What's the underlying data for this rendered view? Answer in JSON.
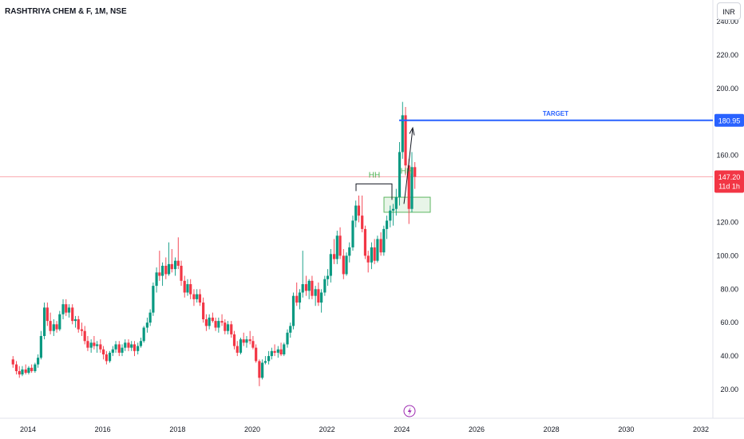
{
  "header": {
    "title": "RASHTRIYA CHEM & F, 1M, NSE",
    "currency": "INR"
  },
  "colors": {
    "up": "#089981",
    "down": "#f23645",
    "target_line": "#2962ff",
    "last_price_line": "#f23645",
    "zone_fill": "#e6f4e6",
    "zone_stroke": "#4caf50",
    "hh_text": "#4caf50",
    "bracket": "#131722"
  },
  "chart_data": {
    "type": "candlestick",
    "ylim": [
      10,
      240
    ],
    "y_ticks": [
      20,
      40,
      60,
      80,
      100,
      120,
      140,
      160,
      180,
      200,
      220,
      240
    ],
    "y_tick_labels": [
      "20.00",
      "40.00",
      "60.00",
      "80.00",
      "100.00",
      "120.00",
      "140.00",
      "160.00",
      "180.00",
      "200.00",
      "220.00",
      "240.00"
    ],
    "xlim": [
      2013.6,
      2032.9
    ],
    "x_ticks": [
      2014,
      2016,
      2018,
      2020,
      2022,
      2024,
      2026,
      2028,
      2030,
      2032
    ],
    "x_tick_labels": [
      "2014",
      "2016",
      "2018",
      "2020",
      "2022",
      "2024",
      "2026",
      "2028",
      "2030",
      "2032"
    ],
    "candles": [
      {
        "t": 2013.6,
        "o": 38,
        "h": 40,
        "l": 33,
        "c": 35
      },
      {
        "t": 2013.69,
        "o": 35,
        "h": 37,
        "l": 29,
        "c": 31
      },
      {
        "t": 2013.77,
        "o": 31,
        "h": 34,
        "l": 27,
        "c": 29
      },
      {
        "t": 2013.85,
        "o": 29,
        "h": 34,
        "l": 28,
        "c": 32
      },
      {
        "t": 2013.94,
        "o": 32,
        "h": 35,
        "l": 29,
        "c": 30
      },
      {
        "t": 2014.02,
        "o": 30,
        "h": 34,
        "l": 29,
        "c": 33
      },
      {
        "t": 2014.1,
        "o": 33,
        "h": 35,
        "l": 30,
        "c": 31
      },
      {
        "t": 2014.19,
        "o": 31,
        "h": 36,
        "l": 30,
        "c": 35
      },
      {
        "t": 2014.27,
        "o": 35,
        "h": 41,
        "l": 33,
        "c": 39
      },
      {
        "t": 2014.35,
        "o": 39,
        "h": 55,
        "l": 38,
        "c": 52
      },
      {
        "t": 2014.44,
        "o": 52,
        "h": 72,
        "l": 50,
        "c": 69
      },
      {
        "t": 2014.52,
        "o": 69,
        "h": 72,
        "l": 58,
        "c": 61
      },
      {
        "t": 2014.6,
        "o": 61,
        "h": 66,
        "l": 53,
        "c": 55
      },
      {
        "t": 2014.69,
        "o": 55,
        "h": 62,
        "l": 52,
        "c": 59
      },
      {
        "t": 2014.77,
        "o": 59,
        "h": 61,
        "l": 54,
        "c": 56
      },
      {
        "t": 2014.85,
        "o": 56,
        "h": 67,
        "l": 55,
        "c": 65
      },
      {
        "t": 2014.94,
        "o": 65,
        "h": 74,
        "l": 62,
        "c": 71
      },
      {
        "t": 2015.02,
        "o": 71,
        "h": 74,
        "l": 64,
        "c": 66
      },
      {
        "t": 2015.1,
        "o": 66,
        "h": 71,
        "l": 63,
        "c": 69
      },
      {
        "t": 2015.19,
        "o": 69,
        "h": 71,
        "l": 59,
        "c": 61
      },
      {
        "t": 2015.27,
        "o": 61,
        "h": 64,
        "l": 57,
        "c": 62
      },
      {
        "t": 2015.35,
        "o": 62,
        "h": 64,
        "l": 54,
        "c": 56
      },
      {
        "t": 2015.44,
        "o": 56,
        "h": 60,
        "l": 52,
        "c": 55
      },
      {
        "t": 2015.52,
        "o": 55,
        "h": 58,
        "l": 47,
        "c": 49
      },
      {
        "t": 2015.6,
        "o": 49,
        "h": 52,
        "l": 43,
        "c": 45
      },
      {
        "t": 2015.69,
        "o": 45,
        "h": 50,
        "l": 42,
        "c": 48
      },
      {
        "t": 2015.77,
        "o": 48,
        "h": 52,
        "l": 44,
        "c": 46
      },
      {
        "t": 2015.85,
        "o": 46,
        "h": 49,
        "l": 42,
        "c": 47
      },
      {
        "t": 2015.94,
        "o": 47,
        "h": 50,
        "l": 42,
        "c": 44
      },
      {
        "t": 2016.02,
        "o": 44,
        "h": 46,
        "l": 38,
        "c": 41
      },
      {
        "t": 2016.1,
        "o": 41,
        "h": 43,
        "l": 35,
        "c": 37
      },
      {
        "t": 2016.19,
        "o": 37,
        "h": 43,
        "l": 36,
        "c": 42
      },
      {
        "t": 2016.27,
        "o": 42,
        "h": 46,
        "l": 40,
        "c": 44
      },
      {
        "t": 2016.35,
        "o": 44,
        "h": 49,
        "l": 42,
        "c": 47
      },
      {
        "t": 2016.44,
        "o": 47,
        "h": 49,
        "l": 40,
        "c": 42
      },
      {
        "t": 2016.52,
        "o": 42,
        "h": 47,
        "l": 40,
        "c": 45
      },
      {
        "t": 2016.6,
        "o": 45,
        "h": 50,
        "l": 43,
        "c": 48
      },
      {
        "t": 2016.69,
        "o": 48,
        "h": 50,
        "l": 43,
        "c": 45
      },
      {
        "t": 2016.77,
        "o": 45,
        "h": 49,
        "l": 43,
        "c": 47
      },
      {
        "t": 2016.85,
        "o": 47,
        "h": 49,
        "l": 40,
        "c": 43
      },
      {
        "t": 2016.94,
        "o": 43,
        "h": 48,
        "l": 41,
        "c": 46
      },
      {
        "t": 2017.02,
        "o": 46,
        "h": 51,
        "l": 45,
        "c": 49
      },
      {
        "t": 2017.1,
        "o": 49,
        "h": 58,
        "l": 48,
        "c": 57
      },
      {
        "t": 2017.19,
        "o": 57,
        "h": 63,
        "l": 54,
        "c": 60
      },
      {
        "t": 2017.27,
        "o": 60,
        "h": 68,
        "l": 58,
        "c": 66
      },
      {
        "t": 2017.35,
        "o": 66,
        "h": 84,
        "l": 64,
        "c": 82
      },
      {
        "t": 2017.44,
        "o": 82,
        "h": 93,
        "l": 78,
        "c": 90
      },
      {
        "t": 2017.52,
        "o": 90,
        "h": 103,
        "l": 85,
        "c": 88
      },
      {
        "t": 2017.6,
        "o": 88,
        "h": 96,
        "l": 82,
        "c": 94
      },
      {
        "t": 2017.69,
        "o": 94,
        "h": 99,
        "l": 86,
        "c": 89
      },
      {
        "t": 2017.77,
        "o": 89,
        "h": 108,
        "l": 88,
        "c": 95
      },
      {
        "t": 2017.85,
        "o": 95,
        "h": 104,
        "l": 90,
        "c": 92
      },
      {
        "t": 2017.94,
        "o": 92,
        "h": 99,
        "l": 88,
        "c": 97
      },
      {
        "t": 2018.02,
        "o": 97,
        "h": 111,
        "l": 92,
        "c": 94
      },
      {
        "t": 2018.1,
        "o": 94,
        "h": 97,
        "l": 82,
        "c": 85
      },
      {
        "t": 2018.19,
        "o": 85,
        "h": 88,
        "l": 75,
        "c": 78
      },
      {
        "t": 2018.27,
        "o": 78,
        "h": 86,
        "l": 76,
        "c": 83
      },
      {
        "t": 2018.35,
        "o": 83,
        "h": 86,
        "l": 74,
        "c": 77
      },
      {
        "t": 2018.44,
        "o": 77,
        "h": 80,
        "l": 70,
        "c": 74
      },
      {
        "t": 2018.52,
        "o": 74,
        "h": 80,
        "l": 72,
        "c": 77
      },
      {
        "t": 2018.6,
        "o": 77,
        "h": 80,
        "l": 70,
        "c": 72
      },
      {
        "t": 2018.69,
        "o": 72,
        "h": 75,
        "l": 60,
        "c": 62
      },
      {
        "t": 2018.77,
        "o": 62,
        "h": 65,
        "l": 55,
        "c": 58
      },
      {
        "t": 2018.85,
        "o": 58,
        "h": 65,
        "l": 56,
        "c": 63
      },
      {
        "t": 2018.94,
        "o": 63,
        "h": 66,
        "l": 60,
        "c": 61
      },
      {
        "t": 2019.02,
        "o": 61,
        "h": 63,
        "l": 55,
        "c": 57
      },
      {
        "t": 2019.1,
        "o": 57,
        "h": 63,
        "l": 54,
        "c": 61
      },
      {
        "t": 2019.19,
        "o": 61,
        "h": 65,
        "l": 58,
        "c": 60
      },
      {
        "t": 2019.27,
        "o": 60,
        "h": 62,
        "l": 53,
        "c": 55
      },
      {
        "t": 2019.35,
        "o": 55,
        "h": 61,
        "l": 53,
        "c": 59
      },
      {
        "t": 2019.44,
        "o": 59,
        "h": 61,
        "l": 51,
        "c": 53
      },
      {
        "t": 2019.52,
        "o": 53,
        "h": 55,
        "l": 44,
        "c": 46
      },
      {
        "t": 2019.6,
        "o": 46,
        "h": 49,
        "l": 40,
        "c": 42
      },
      {
        "t": 2019.69,
        "o": 42,
        "h": 51,
        "l": 41,
        "c": 50
      },
      {
        "t": 2019.77,
        "o": 50,
        "h": 54,
        "l": 46,
        "c": 48
      },
      {
        "t": 2019.85,
        "o": 48,
        "h": 52,
        "l": 45,
        "c": 50
      },
      {
        "t": 2019.94,
        "o": 50,
        "h": 55,
        "l": 47,
        "c": 49
      },
      {
        "t": 2020.02,
        "o": 49,
        "h": 52,
        "l": 44,
        "c": 45
      },
      {
        "t": 2020.1,
        "o": 45,
        "h": 47,
        "l": 36,
        "c": 37
      },
      {
        "t": 2020.19,
        "o": 37,
        "h": 38,
        "l": 22,
        "c": 27
      },
      {
        "t": 2020.27,
        "o": 27,
        "h": 38,
        "l": 26,
        "c": 36
      },
      {
        "t": 2020.35,
        "o": 36,
        "h": 40,
        "l": 35,
        "c": 37
      },
      {
        "t": 2020.44,
        "o": 37,
        "h": 43,
        "l": 35,
        "c": 40
      },
      {
        "t": 2020.52,
        "o": 40,
        "h": 45,
        "l": 38,
        "c": 43
      },
      {
        "t": 2020.6,
        "o": 43,
        "h": 47,
        "l": 40,
        "c": 42
      },
      {
        "t": 2020.69,
        "o": 42,
        "h": 46,
        "l": 39,
        "c": 44
      },
      {
        "t": 2020.77,
        "o": 44,
        "h": 48,
        "l": 40,
        "c": 41
      },
      {
        "t": 2020.85,
        "o": 41,
        "h": 48,
        "l": 40,
        "c": 47
      },
      {
        "t": 2020.94,
        "o": 47,
        "h": 56,
        "l": 45,
        "c": 54
      },
      {
        "t": 2021.02,
        "o": 54,
        "h": 60,
        "l": 51,
        "c": 58
      },
      {
        "t": 2021.1,
        "o": 58,
        "h": 78,
        "l": 56,
        "c": 76
      },
      {
        "t": 2021.19,
        "o": 76,
        "h": 84,
        "l": 70,
        "c": 72
      },
      {
        "t": 2021.27,
        "o": 72,
        "h": 80,
        "l": 68,
        "c": 78
      },
      {
        "t": 2021.35,
        "o": 78,
        "h": 103,
        "l": 75,
        "c": 83
      },
      {
        "t": 2021.44,
        "o": 83,
        "h": 88,
        "l": 76,
        "c": 79
      },
      {
        "t": 2021.52,
        "o": 79,
        "h": 86,
        "l": 74,
        "c": 85
      },
      {
        "t": 2021.6,
        "o": 85,
        "h": 88,
        "l": 74,
        "c": 76
      },
      {
        "t": 2021.69,
        "o": 76,
        "h": 82,
        "l": 70,
        "c": 80
      },
      {
        "t": 2021.77,
        "o": 80,
        "h": 84,
        "l": 70,
        "c": 72
      },
      {
        "t": 2021.85,
        "o": 72,
        "h": 80,
        "l": 66,
        "c": 78
      },
      {
        "t": 2021.94,
        "o": 78,
        "h": 88,
        "l": 76,
        "c": 86
      },
      {
        "t": 2022.02,
        "o": 86,
        "h": 92,
        "l": 82,
        "c": 88
      },
      {
        "t": 2022.1,
        "o": 88,
        "h": 104,
        "l": 84,
        "c": 101
      },
      {
        "t": 2022.19,
        "o": 101,
        "h": 110,
        "l": 95,
        "c": 98
      },
      {
        "t": 2022.27,
        "o": 98,
        "h": 115,
        "l": 95,
        "c": 112
      },
      {
        "t": 2022.35,
        "o": 112,
        "h": 117,
        "l": 98,
        "c": 100
      },
      {
        "t": 2022.44,
        "o": 100,
        "h": 104,
        "l": 86,
        "c": 89
      },
      {
        "t": 2022.52,
        "o": 89,
        "h": 102,
        "l": 88,
        "c": 100
      },
      {
        "t": 2022.6,
        "o": 100,
        "h": 108,
        "l": 96,
        "c": 105
      },
      {
        "t": 2022.69,
        "o": 105,
        "h": 124,
        "l": 103,
        "c": 121
      },
      {
        "t": 2022.77,
        "o": 121,
        "h": 133,
        "l": 117,
        "c": 130
      },
      {
        "t": 2022.85,
        "o": 130,
        "h": 136,
        "l": 120,
        "c": 124
      },
      {
        "t": 2022.94,
        "o": 124,
        "h": 136,
        "l": 114,
        "c": 116
      },
      {
        "t": 2023.02,
        "o": 116,
        "h": 118,
        "l": 98,
        "c": 100
      },
      {
        "t": 2023.1,
        "o": 100,
        "h": 103,
        "l": 90,
        "c": 96
      },
      {
        "t": 2023.19,
        "o": 96,
        "h": 108,
        "l": 92,
        "c": 105
      },
      {
        "t": 2023.27,
        "o": 105,
        "h": 110,
        "l": 95,
        "c": 97
      },
      {
        "t": 2023.35,
        "o": 97,
        "h": 112,
        "l": 96,
        "c": 110
      },
      {
        "t": 2023.44,
        "o": 110,
        "h": 114,
        "l": 100,
        "c": 102
      },
      {
        "t": 2023.52,
        "o": 102,
        "h": 118,
        "l": 100,
        "c": 116
      },
      {
        "t": 2023.6,
        "o": 116,
        "h": 124,
        "l": 110,
        "c": 121
      },
      {
        "t": 2023.69,
        "o": 121,
        "h": 130,
        "l": 117,
        "c": 127
      },
      {
        "t": 2023.77,
        "o": 127,
        "h": 131,
        "l": 118,
        "c": 128
      },
      {
        "t": 2023.85,
        "o": 128,
        "h": 140,
        "l": 124,
        "c": 135
      },
      {
        "t": 2023.94,
        "o": 135,
        "h": 168,
        "l": 130,
        "c": 162
      },
      {
        "t": 2024.02,
        "o": 162,
        "h": 192,
        "l": 158,
        "c": 184
      },
      {
        "t": 2024.1,
        "o": 184,
        "h": 189,
        "l": 148,
        "c": 154
      },
      {
        "t": 2024.19,
        "o": 154,
        "h": 158,
        "l": 119,
        "c": 128
      },
      {
        "t": 2024.27,
        "o": 128,
        "h": 162,
        "l": 126,
        "c": 153
      },
      {
        "t": 2024.35,
        "o": 153,
        "h": 156,
        "l": 140,
        "c": 147.2
      }
    ],
    "last_price": 147.2,
    "last_price_label": "147.20",
    "countdown_label": "11d 1h",
    "target_price": 180.95,
    "target_price_label": "180.95",
    "annotations": {
      "target_text": "TARGET",
      "hh_left": "HH",
      "hh_right": "HH",
      "hh_level": 143,
      "support_zone": [
        126,
        135
      ]
    }
  },
  "footer": {
    "event_icon": "lightning-icon"
  }
}
